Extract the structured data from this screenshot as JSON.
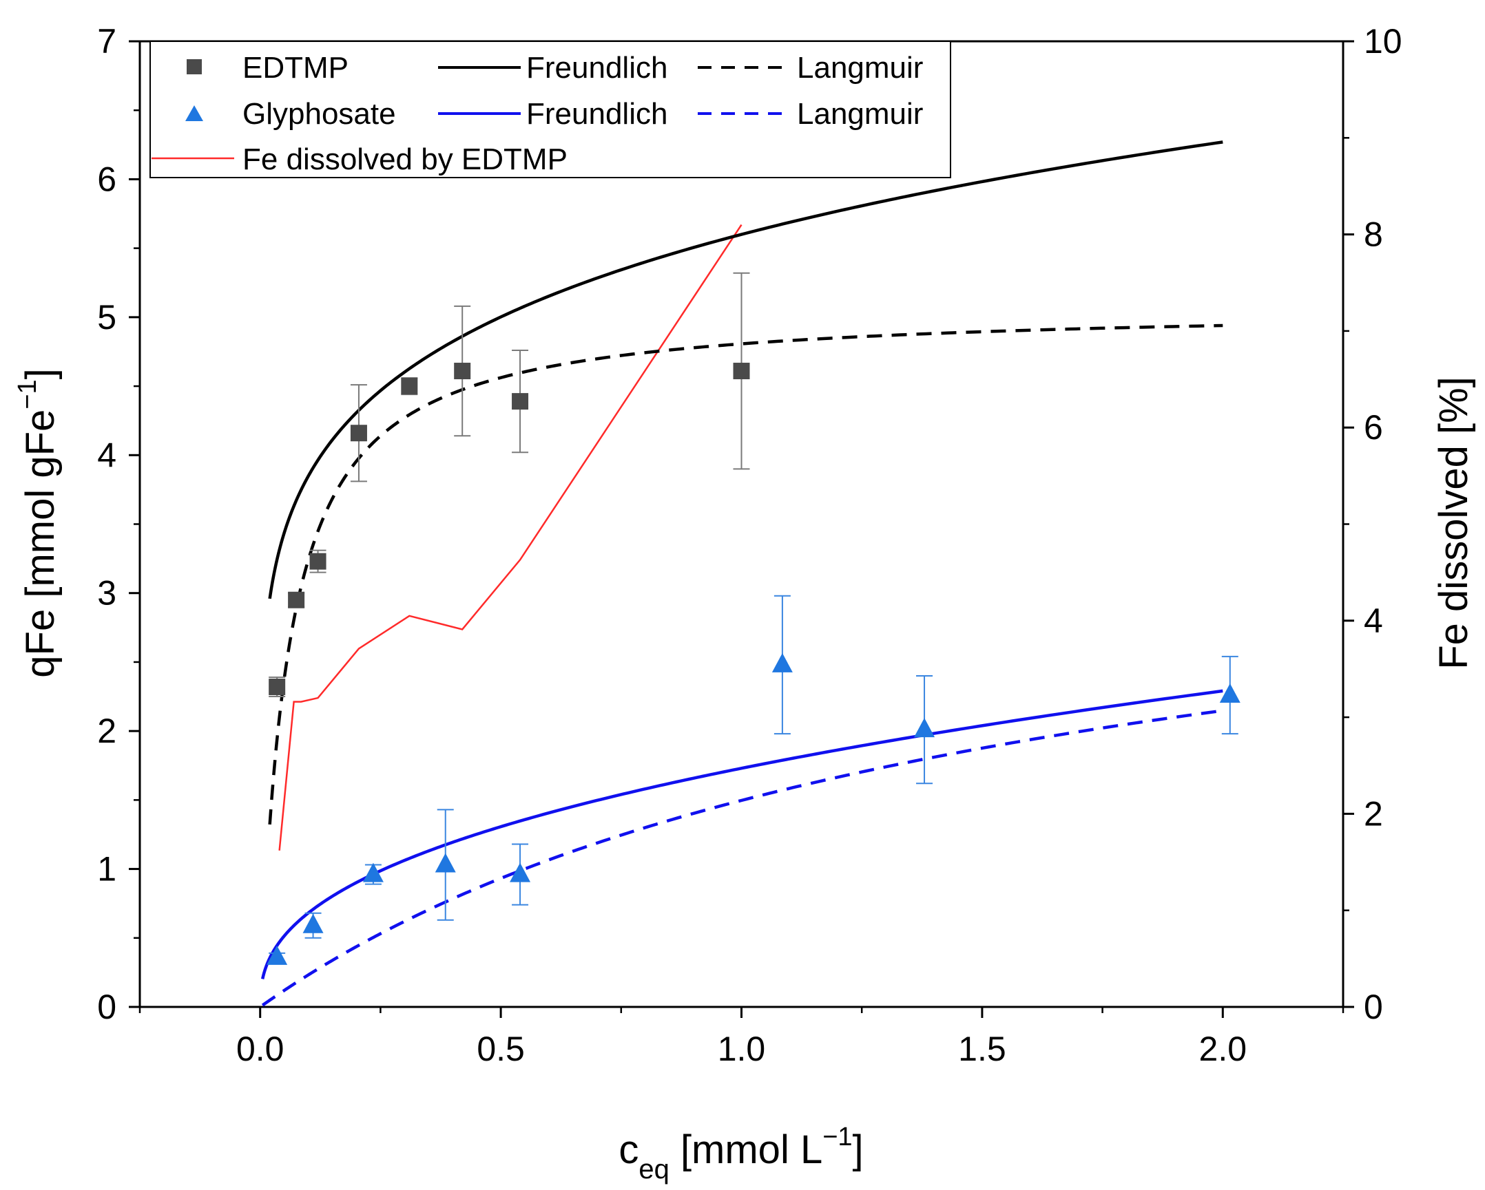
{
  "chart_data": {
    "type": "scatter",
    "xlabel_main": "c",
    "xlabel_sub": "eq",
    "xlabel_rest": " [mmol L",
    "xlabel_sup": "−1",
    "xlabel_end": "]",
    "ylabel_left_main": "qFe [mmol gFe",
    "ylabel_left_sup": "−1",
    "ylabel_left_end": "]",
    "ylabel_right": "Fe dissolved [%]",
    "xlim": [
      -0.25,
      2.25
    ],
    "ylim_left": [
      0,
      7
    ],
    "ylim_right": [
      0,
      10
    ],
    "x_ticks": [
      0.0,
      0.5,
      1.0,
      1.5,
      2.0
    ],
    "x_tick_labels": [
      "0.0",
      "0.5",
      "1.0",
      "1.5",
      "2.0"
    ],
    "y_left_ticks": [
      0,
      1,
      2,
      3,
      4,
      5,
      6,
      7
    ],
    "y_left_tick_labels": [
      "0",
      "1",
      "2",
      "3",
      "4",
      "5",
      "6",
      "7"
    ],
    "y_right_ticks": [
      0,
      2,
      4,
      6,
      8,
      10
    ],
    "y_right_tick_labels": [
      "0",
      "2",
      "4",
      "6",
      "8",
      "10"
    ],
    "colors": {
      "edtmp": "#4a4a4a",
      "edtmp_fit": "#000000",
      "glyphosate": "#1f77e0",
      "glyphosate_fit": "#1010ee",
      "fe_dissolved": "#ff2a2a",
      "glyph_err": "#3a86e0",
      "edtmp_err": "#7a7a7a"
    },
    "series": [
      {
        "name": "EDTMP",
        "kind": "points",
        "marker": "square",
        "x": [
          0.035,
          0.075,
          0.12,
          0.205,
          0.31,
          0.42,
          0.54,
          1.0
        ],
        "y": [
          2.32,
          2.95,
          3.23,
          4.16,
          4.5,
          4.61,
          4.39,
          4.61
        ],
        "err": [
          0.07,
          0.05,
          0.08,
          0.35,
          0.06,
          0.47,
          0.37,
          0.71
        ]
      },
      {
        "name": "Glyphosate",
        "kind": "points",
        "marker": "triangle",
        "x": [
          0.035,
          0.11,
          0.235,
          0.385,
          0.54,
          1.085,
          1.38,
          2.015
        ],
        "y": [
          0.36,
          0.59,
          0.96,
          1.03,
          0.96,
          2.48,
          2.01,
          2.26
        ],
        "err": [
          0.03,
          0.09,
          0.07,
          0.4,
          0.22,
          0.5,
          0.39,
          0.28
        ]
      },
      {
        "name": "EDTMP Freundlich",
        "kind": "freundlich",
        "K": 5.6,
        "n": 0.163,
        "x_start": 0.02,
        "x_end": 2.0
      },
      {
        "name": "EDTMP Langmuir",
        "kind": "langmuir",
        "qmax": 5.08,
        "KL": 17.6,
        "x_start": 0.02,
        "x_end": 2.0
      },
      {
        "name": "Glyphosate Freundlich",
        "kind": "freundlich",
        "K": 1.73,
        "n": 0.405,
        "x_start": 0.005,
        "x_end": 2.0
      },
      {
        "name": "Glyphosate Langmuir",
        "kind": "langmuir",
        "qmax": 3.8,
        "KL": 0.65,
        "x_start": 0.005,
        "x_end": 2.0
      },
      {
        "name": "Fe dissolved by EDTMP",
        "kind": "line",
        "axis": "right",
        "x": [
          0.04,
          0.07,
          0.085,
          0.12,
          0.205,
          0.31,
          0.42,
          0.54,
          1.0
        ],
        "y": [
          1.62,
          3.16,
          3.16,
          3.2,
          3.71,
          4.05,
          3.91,
          4.63,
          8.1
        ]
      }
    ],
    "legend": {
      "row1_marker": "EDTMP",
      "row1_fit1": "Freundlich",
      "row1_fit2": "Langmuir",
      "row2_marker": "Glyphosate",
      "row2_fit1": "Freundlich",
      "row2_fit2": "Langmuir",
      "row3_line": "Fe dissolved by EDTMP"
    }
  }
}
